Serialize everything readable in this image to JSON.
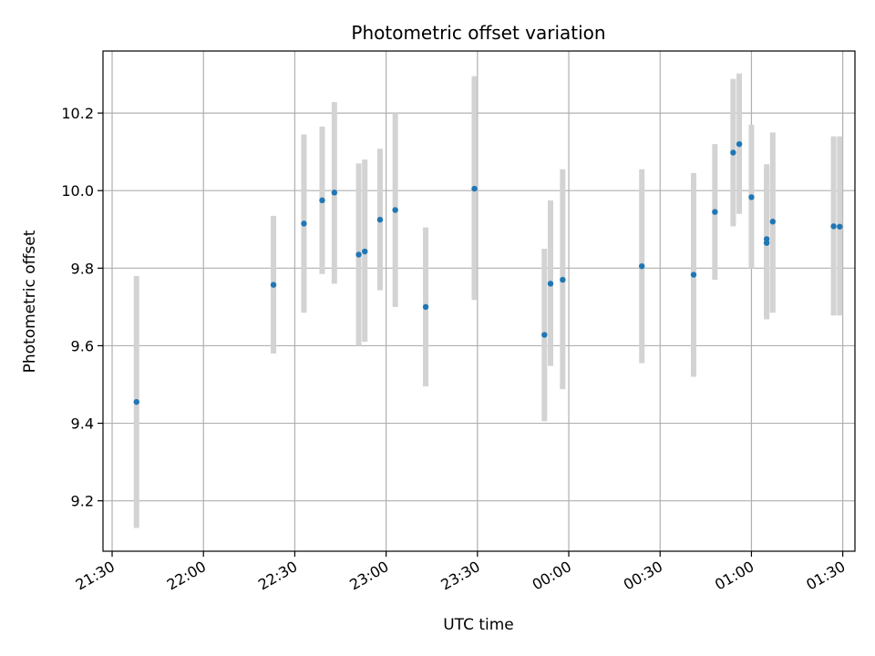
{
  "chart_data": {
    "type": "scatter",
    "title": "Photometric offset variation",
    "xlabel": "UTC time",
    "ylabel": "Photometric offset",
    "x_tick_labels": [
      "21:30",
      "22:00",
      "22:30",
      "23:00",
      "23:30",
      "00:00",
      "00:30",
      "01:00",
      "01:30"
    ],
    "y_tick_labels": [
      "9.2",
      "9.4",
      "9.6",
      "9.8",
      "10.0",
      "10.2"
    ],
    "y_ticks": [
      9.2,
      9.4,
      9.6,
      9.8,
      10.0,
      10.2
    ],
    "xlim": [
      "21:27",
      "01:34"
    ],
    "ylim": [
      9.07,
      10.36
    ],
    "grid": true,
    "marker_color": "#1f77b4",
    "errorbar_color": "#d3d3d3",
    "points": [
      {
        "x": "21:38",
        "y": 9.455,
        "yerr_low": 9.13,
        "yerr_high": 9.78
      },
      {
        "x": "22:23",
        "y": 9.757,
        "yerr_low": 9.58,
        "yerr_high": 9.935
      },
      {
        "x": "22:33",
        "y": 9.915,
        "yerr_low": 9.685,
        "yerr_high": 10.145
      },
      {
        "x": "22:39",
        "y": 9.975,
        "yerr_low": 9.785,
        "yerr_high": 10.165
      },
      {
        "x": "22:43",
        "y": 9.995,
        "yerr_low": 9.76,
        "yerr_high": 10.228
      },
      {
        "x": "22:51",
        "y": 9.835,
        "yerr_low": 9.6,
        "yerr_high": 10.07
      },
      {
        "x": "22:53",
        "y": 9.843,
        "yerr_low": 9.61,
        "yerr_high": 10.08
      },
      {
        "x": "22:58",
        "y": 9.925,
        "yerr_low": 9.743,
        "yerr_high": 10.108
      },
      {
        "x": "23:03",
        "y": 9.95,
        "yerr_low": 9.7,
        "yerr_high": 10.2
      },
      {
        "x": "23:13",
        "y": 9.7,
        "yerr_low": 9.495,
        "yerr_high": 9.905
      },
      {
        "x": "23:29",
        "y": 10.005,
        "yerr_low": 9.718,
        "yerr_high": 10.295
      },
      {
        "x": "23:52",
        "y": 9.628,
        "yerr_low": 9.405,
        "yerr_high": 9.85
      },
      {
        "x": "23:54",
        "y": 9.76,
        "yerr_low": 9.548,
        "yerr_high": 9.975
      },
      {
        "x": "23:58",
        "y": 9.77,
        "yerr_low": 9.488,
        "yerr_high": 10.055
      },
      {
        "x": "00:24",
        "y": 9.805,
        "yerr_low": 9.555,
        "yerr_high": 10.055
      },
      {
        "x": "00:41",
        "y": 9.783,
        "yerr_low": 9.52,
        "yerr_high": 10.045
      },
      {
        "x": "00:48",
        "y": 9.945,
        "yerr_low": 9.77,
        "yerr_high": 10.12
      },
      {
        "x": "00:54",
        "y": 10.098,
        "yerr_low": 9.908,
        "yerr_high": 10.288
      },
      {
        "x": "00:56",
        "y": 10.12,
        "yerr_low": 9.94,
        "yerr_high": 10.302
      },
      {
        "x": "01:00",
        "y": 9.983,
        "yerr_low": 9.8,
        "yerr_high": 10.17
      },
      {
        "x": "01:05",
        "y": 9.875,
        "yerr_low": 9.668,
        "yerr_high": 10.068
      },
      {
        "x": "01:05",
        "y": 9.865,
        "yerr_low": 9.675,
        "yerr_high": 10.055
      },
      {
        "x": "01:07",
        "y": 9.92,
        "yerr_low": 9.685,
        "yerr_high": 10.15
      },
      {
        "x": "01:27",
        "y": 9.908,
        "yerr_low": 9.678,
        "yerr_high": 10.14
      },
      {
        "x": "01:29",
        "y": 9.907,
        "yerr_low": 9.678,
        "yerr_high": 10.14
      }
    ]
  }
}
